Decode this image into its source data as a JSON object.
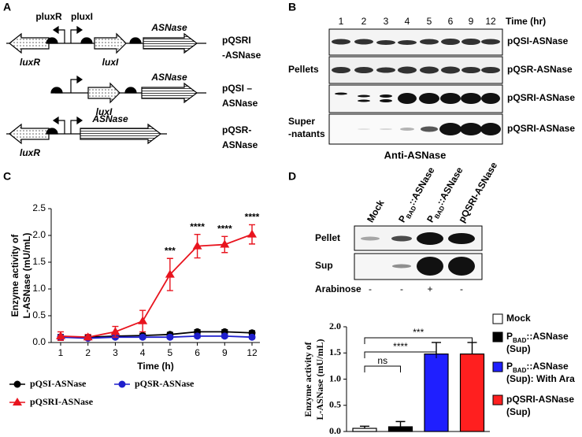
{
  "panel_labels": [
    "A",
    "B",
    "C",
    "D"
  ],
  "diagram": {
    "promoter_labels": [
      "pluxR",
      "pluxI"
    ],
    "constructs": [
      {
        "genes": [
          "luxR",
          "luxI",
          "ASNase"
        ],
        "name": [
          "pQSRI",
          "-ASNase"
        ]
      },
      {
        "genes": [
          "luxI",
          "ASNase"
        ],
        "name": [
          "pQSI –",
          "ASNase"
        ]
      },
      {
        "genes": [
          "luxR",
          "ASNase"
        ],
        "name": [
          "pQSR-",
          "ASNase"
        ]
      }
    ]
  },
  "blot_b": {
    "time_points": [
      "1",
      "2",
      "3",
      "4",
      "5",
      "6",
      "9",
      "12"
    ],
    "time_label": "Time (hr)",
    "groups": [
      [
        "Pellets"
      ],
      [
        "Super",
        "-natants"
      ]
    ],
    "rows": [
      "pQSI-ASNase",
      "pQSR-ASNase",
      "pQSRI-ASNase",
      "pQSRI-ASNase"
    ],
    "antibody": "Anti-ASNase"
  },
  "blot_d": {
    "lanes": [
      {
        "text": "Mock"
      },
      {
        "text": "P",
        "sub": "BAD",
        "rest": "::ASNase"
      },
      {
        "text": "P",
        "sub": "BAD",
        "rest": "::ASNase"
      },
      {
        "text": "pQSRI-ASNase"
      }
    ],
    "rows": [
      "Pellet",
      "Sup"
    ],
    "condition": "Arabinose",
    "condition_values": [
      "-",
      "-",
      "+",
      "-"
    ]
  },
  "chart_data": [
    {
      "type": "line",
      "x_label": "Time (h)",
      "y_label": [
        "Enzyme activity of",
        "L-ASNase (mU/mL)"
      ],
      "categories": [
        "1",
        "2",
        "3",
        "4",
        "5",
        "6",
        "9",
        "12"
      ],
      "ylim": [
        0,
        2.5
      ],
      "yticks": [
        {
          "value": 0,
          "label": "0.0"
        },
        0.5,
        {
          "value": 1,
          "label": "1.0"
        },
        1.5,
        {
          "value": 2,
          "label": "2.0"
        },
        2.5
      ],
      "significance": [
        null,
        null,
        null,
        null,
        "***",
        "****",
        "****",
        "****"
      ],
      "series": [
        {
          "name": "pQSI-ASNase",
          "color": "#000000",
          "marker": "circle",
          "values": [
            0.1,
            0.1,
            0.12,
            0.13,
            0.15,
            0.2,
            0.2,
            0.18
          ],
          "errors": [
            0.05,
            0.04,
            0.04,
            0.04,
            0.04,
            0.04,
            0.04,
            0.04
          ]
        },
        {
          "name": "pQSR-ASNase",
          "color": "#1f1fcc",
          "marker": "circle",
          "values": [
            0.1,
            0.08,
            0.1,
            0.1,
            0.1,
            0.12,
            0.12,
            0.1
          ],
          "errors": [
            0.04,
            0.03,
            0.03,
            0.03,
            0.03,
            0.03,
            0.03,
            0.03
          ]
        },
        {
          "name": "pQSRI-ASNase",
          "color": "#e8141e",
          "marker": "triangle",
          "values": [
            0.12,
            0.1,
            0.2,
            0.4,
            1.27,
            1.8,
            1.83,
            2.02
          ],
          "errors": [
            0.08,
            0.05,
            0.1,
            0.2,
            0.3,
            0.22,
            0.15,
            0.18
          ]
        }
      ]
    },
    {
      "type": "bar",
      "y_label": [
        "Enzyme activity of",
        "L-ASNase (mU/mL)"
      ],
      "categories": [
        {
          "text": "Mock"
        },
        {
          "text": "P",
          "sub": "BAD",
          "rest": "::ASNase",
          "line2": "(Sup)"
        },
        {
          "text": "P",
          "sub": "BAD",
          "rest": "::ASNase",
          "line2": "(Sup): With Ara"
        },
        {
          "text": "pQSRI-ASNase",
          "line2": "(Sup)"
        }
      ],
      "colors": [
        "#ffffff",
        "#000000",
        "#1f1fff",
        "#ff1f1f"
      ],
      "values": [
        0.06,
        0.09,
        1.48,
        1.48
      ],
      "errors": [
        0.04,
        0.1,
        0.22,
        0.22
      ],
      "ylim": [
        0,
        2
      ],
      "yticks": [
        {
          "value": 0,
          "label": "0.0"
        },
        0.5,
        {
          "value": 1,
          "label": "1.0"
        },
        1.5,
        {
          "value": 2,
          "label": "2.0"
        }
      ],
      "comparison_labels": [
        null,
        "ns",
        "****",
        "***"
      ]
    }
  ]
}
